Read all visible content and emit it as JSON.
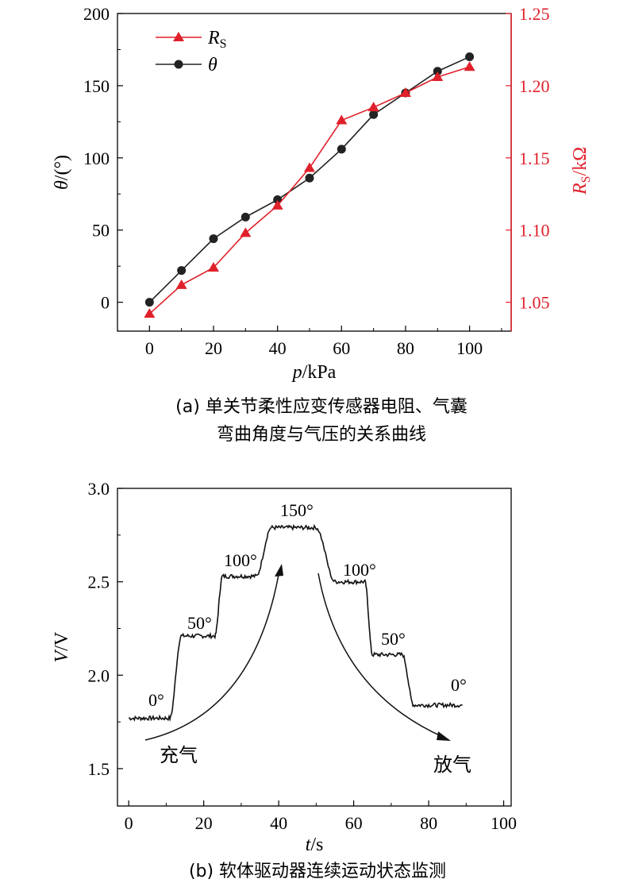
{
  "chart_data": [
    {
      "type": "line",
      "panel": "a",
      "x": [
        0,
        10,
        20,
        30,
        40,
        50,
        60,
        70,
        80,
        90,
        100
      ],
      "xlabel_var": "p",
      "xlabel_unit": "/kPa",
      "xlim": [
        -10,
        113
      ],
      "xticks": [
        "0",
        "20",
        "40",
        "60",
        "80",
        "100"
      ],
      "left_axis": {
        "label_var": "θ",
        "label_unit": "/(°)",
        "ylim": [
          -20,
          200
        ],
        "ticks": [
          "0",
          "50",
          "100",
          "150",
          "200"
        ],
        "color": "#000000"
      },
      "right_axis": {
        "label_var": "R",
        "label_sub": "S",
        "label_unit": "/kΩ",
        "ylim": [
          1.03,
          1.25
        ],
        "ticks": [
          "1.05",
          "1.10",
          "1.15",
          "1.20",
          "1.25"
        ],
        "color": "#e0202a"
      },
      "series": [
        {
          "name": "θ",
          "axis": "left",
          "marker": "circle",
          "color": "#222222",
          "values": [
            0,
            22,
            44,
            59,
            71,
            86,
            106,
            130,
            145,
            160,
            170
          ]
        },
        {
          "name": "R",
          "name_sub": "S",
          "axis": "right",
          "marker": "triangle",
          "color": "#e0202a",
          "values": [
            1.042,
            1.062,
            1.074,
            1.098,
            1.117,
            1.143,
            1.176,
            1.185,
            1.195,
            1.206,
            1.213
          ]
        }
      ],
      "caption_line1": "(a) 单关节柔性应变传感器电阻、气囊",
      "caption_line2": "弯曲角度与气压的关系曲线"
    },
    {
      "type": "line",
      "panel": "b",
      "xlabel_var": "t",
      "xlabel_unit": "/s",
      "ylabel_var": "V",
      "ylabel_unit": "/V",
      "xlim": [
        -3,
        102
      ],
      "ylim": [
        1.3,
        3.0
      ],
      "xticks": [
        "0",
        "20",
        "40",
        "60",
        "80",
        "100"
      ],
      "yticks": [
        "1.5",
        "2.0",
        "2.5",
        "3.0"
      ],
      "plateaus": [
        {
          "t_start": 0,
          "t_end": 11,
          "v": 1.77
        },
        {
          "t_start": 14,
          "t_end": 23,
          "v": 2.21
        },
        {
          "t_start": 25,
          "t_end": 34,
          "v": 2.53
        },
        {
          "t_start": 38,
          "t_end": 50,
          "v": 2.79
        },
        {
          "t_start": 55,
          "t_end": 63,
          "v": 2.5
        },
        {
          "t_start": 65,
          "t_end": 73,
          "v": 2.11
        },
        {
          "t_start": 76,
          "t_end": 89,
          "v": 1.84
        }
      ],
      "annotations": [
        "0°",
        "50°",
        "100°",
        "150°",
        "100°",
        "50°",
        "0°"
      ],
      "arrow_labels": [
        "充气",
        "放气"
      ],
      "caption": "(b) 软体驱动器连续运动状态监测"
    }
  ]
}
